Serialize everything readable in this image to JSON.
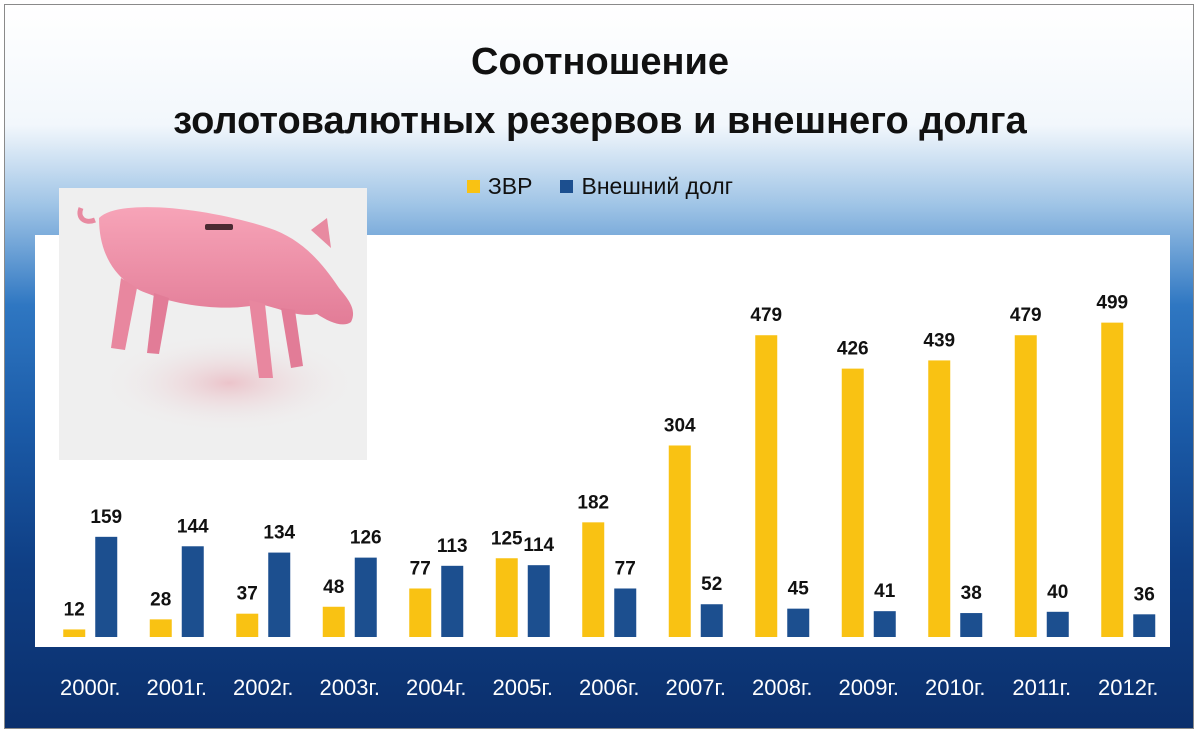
{
  "title_line1": "Соотношение",
  "title_line2": "золотовалютных резервов и внешнего долга",
  "legend": [
    {
      "label": "ЗВР",
      "color": "#f9c213"
    },
    {
      "label": "Внешний долг",
      "color": "#1c4f8f"
    }
  ],
  "chart_data": {
    "type": "bar",
    "categories": [
      "2000г.",
      "2001г.",
      "2002г.",
      "2003г.",
      "2004г.",
      "2005г.",
      "2006г.",
      "2007г.",
      "2008г.",
      "2009г.",
      "2010г.",
      "2011г.",
      "2012г."
    ],
    "series": [
      {
        "name": "ЗВР",
        "color": "#f9c213",
        "values": [
          12,
          28,
          37,
          48,
          77,
          125,
          182,
          304,
          479,
          426,
          439,
          479,
          499
        ]
      },
      {
        "name": "Внешний долг",
        "color": "#1c4f8f",
        "values": [
          159,
          144,
          134,
          126,
          113,
          114,
          77,
          52,
          45,
          41,
          38,
          40,
          36
        ]
      }
    ],
    "title": "Соотношение золотовалютных резервов и внешнего долга",
    "data_labels": true,
    "grid": false,
    "legend_position": "top-center",
    "ylim": [
      0,
      520
    ]
  }
}
